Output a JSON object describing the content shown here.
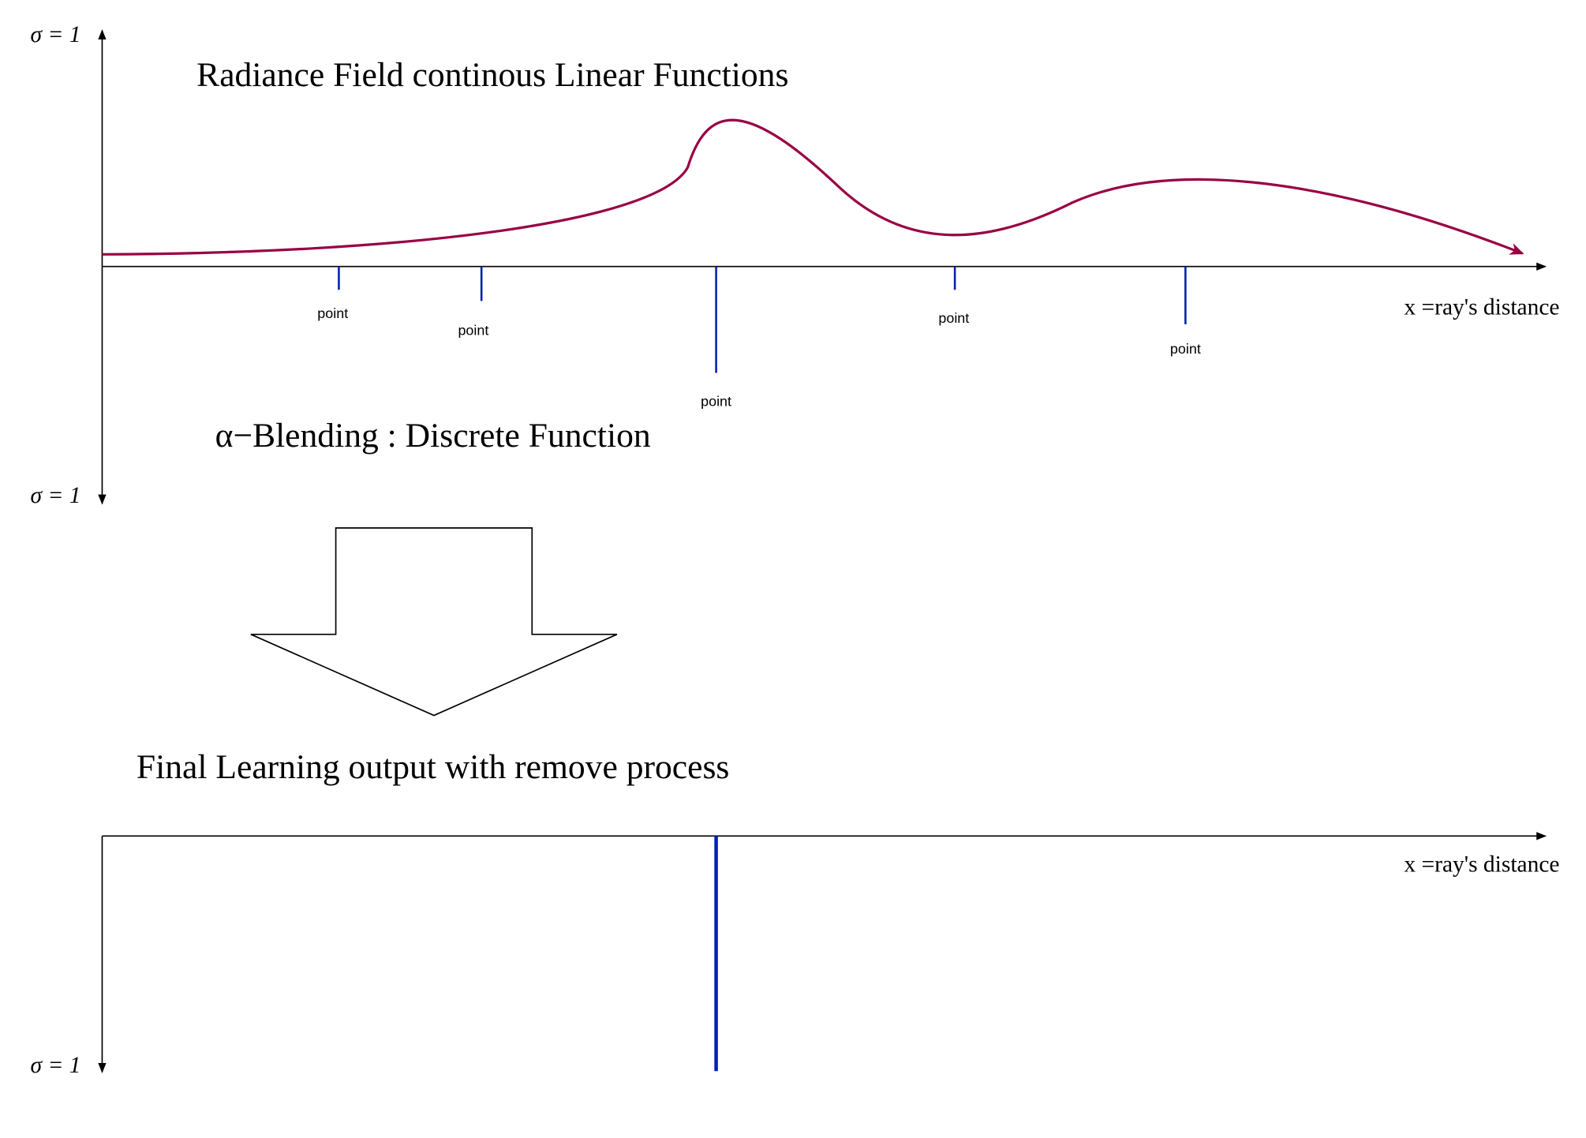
{
  "top_plot": {
    "title": "Radiance Field continous Linear Functions",
    "y_up_label": "σ = 1",
    "y_down_label": "σ = 1",
    "x_label": "x =ray's distance",
    "points": [
      "point",
      "point",
      "point",
      "point",
      "point"
    ]
  },
  "blend_label": "α−Blending : Discrete Function",
  "bottom_plot": {
    "title": "Final Learning output with remove process",
    "x_label": "x =ray's distance",
    "y_down_label": "σ = 1"
  }
}
